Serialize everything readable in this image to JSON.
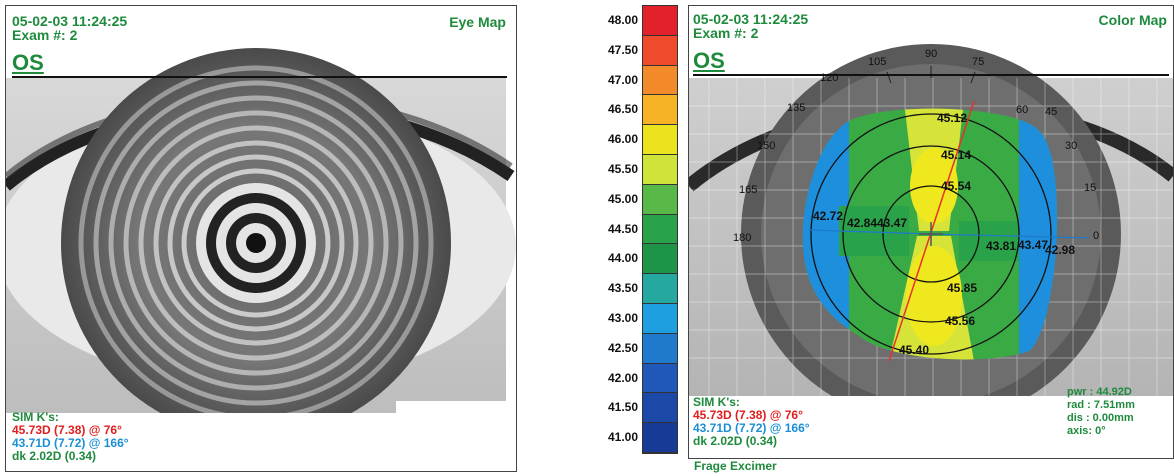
{
  "left_panel": {
    "timestamp": "05-02-03 11:24:25",
    "exam": "Exam #: 2",
    "eye": "OS",
    "title": "Eye Map",
    "sim_title": "SIM K's:",
    "sim_k1": "45.73D (7.38) @ 76°",
    "sim_k2": "43.71D (7.72) @ 166°",
    "dk": "dk  2.02D (0.34)"
  },
  "right_panel": {
    "timestamp": "05-02-03 11:24:25",
    "exam": "Exam #: 2",
    "eye": "OS",
    "title": "Color Map",
    "sim_title": "SIM K's:",
    "sim_k1": "45.73D (7.38) @ 76°",
    "sim_k2": "43.71D (7.72) @ 166°",
    "dk": "dk  2.02D (0.34)",
    "pwr": "pwr : 44.92D",
    "rad": "rad :  7.51mm",
    "dis": "dis :  0.00mm",
    "axis": "axis:  0°",
    "footer": "Frage Excimer"
  },
  "scale": {
    "labels": [
      "48.00",
      "47.50",
      "47.00",
      "46.50",
      "46.00",
      "45.50",
      "45.00",
      "44.50",
      "44.00",
      "43.50",
      "43.00",
      "42.50",
      "42.00",
      "41.50",
      "41.00"
    ],
    "colors": [
      "#e3212a",
      "#ee4a2b",
      "#f28a2a",
      "#f5b325",
      "#ece31f",
      "#cfe33a",
      "#59b948",
      "#2aa24a",
      "#1d9448",
      "#24a8a0",
      "#1e9fe0",
      "#1f79cc",
      "#1f58b8",
      "#1c48a8",
      "#173a96"
    ]
  },
  "map_values": [
    {
      "t": "45.12"
    },
    {
      "t": "45.14"
    },
    {
      "t": "45.54"
    },
    {
      "t": "42.72"
    },
    {
      "t": "42.84"
    },
    {
      "t": "43.47"
    },
    {
      "t": "43.81"
    },
    {
      "t": "43.47"
    },
    {
      "t": "42.98"
    },
    {
      "t": "45.85"
    },
    {
      "t": "45.56"
    },
    {
      "t": "45.40"
    }
  ],
  "axis_labels": [
    "90",
    "105",
    "75",
    "120",
    "60",
    "135",
    "45",
    "150",
    "30",
    "165",
    "15",
    "180",
    "0"
  ],
  "icons": {
    "crosshair": "crosshair-icon"
  }
}
